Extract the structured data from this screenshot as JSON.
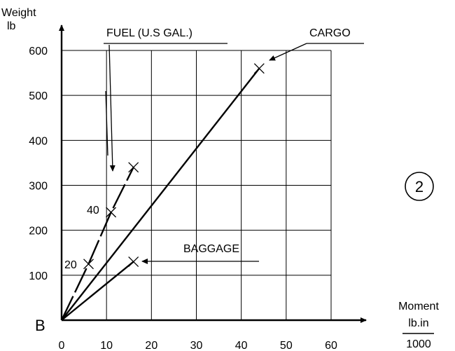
{
  "chart_data": {
    "type": "line",
    "y_axis": {
      "label_line1": "Weight",
      "label_line2": "lb",
      "ylim": [
        0,
        600
      ],
      "ticks": [
        100,
        200,
        300,
        400,
        500,
        600
      ],
      "tick_labels": [
        "100",
        "200",
        "300",
        "400",
        "500",
        "600"
      ]
    },
    "x_axis": {
      "label_line1": "Moment",
      "label_line2": "lb.in",
      "label_line3": "1000",
      "xlim": [
        0,
        60
      ],
      "ticks": [
        0,
        10,
        20,
        30,
        40,
        50,
        60
      ],
      "tick_labels": [
        "0",
        "10",
        "20",
        "30",
        "40",
        "50",
        "60"
      ]
    },
    "origin_label": "B",
    "grid": true,
    "series": [
      {
        "name": "FUEL (U.S GAL.)",
        "style": "dashed",
        "points": [
          [
            0,
            0
          ],
          [
            6,
            125
          ],
          [
            11,
            240
          ],
          [
            16,
            340
          ]
        ],
        "end": [
          16,
          340
        ],
        "gallon_marks": [
          {
            "label": "20",
            "x": 6,
            "y": 125
          },
          {
            "label": "40",
            "x": 11,
            "y": 240
          }
        ]
      },
      {
        "name": "CARGO",
        "style": "solid",
        "points": [
          [
            0,
            0
          ],
          [
            44,
            560
          ]
        ],
        "end": [
          44,
          560
        ]
      },
      {
        "name": "BAGGAGE",
        "style": "solid",
        "points": [
          [
            0,
            0
          ],
          [
            16,
            130
          ]
        ],
        "end": [
          16,
          130
        ]
      }
    ],
    "badge": "2"
  }
}
